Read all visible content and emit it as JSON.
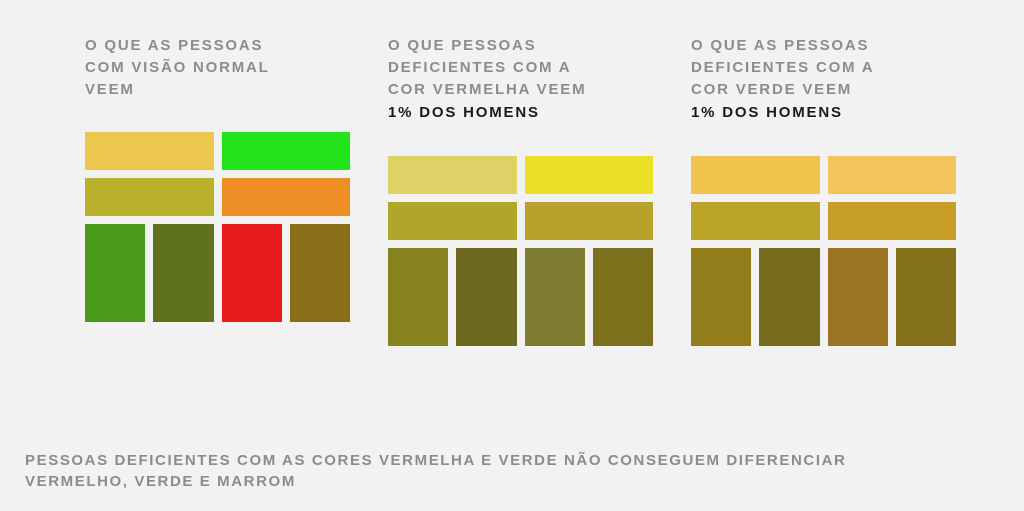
{
  "background_color": "#f2f2f2",
  "title_color": "#8c8c8c",
  "subtitle_color": "#1a1a1a",
  "title_fontsize": 15,
  "title_letter_spacing": 1.8,
  "swatch_gap": 8,
  "row_height_short": 38,
  "row_height_tall": 98,
  "panels": [
    {
      "title": "O QUE AS PESSOAS\nCOM VISÃO NORMAL\nVEEM",
      "subtitle": "",
      "rows": [
        {
          "tall": false,
          "colors": [
            "#ecc64f",
            "#22e319"
          ]
        },
        {
          "tall": false,
          "colors": [
            "#bab12b",
            "#ed8f24"
          ]
        },
        {
          "tall": true,
          "colors": [
            "#4a9a19",
            "#60711c",
            "#e61b19",
            "#886e18"
          ]
        }
      ]
    },
    {
      "title": "O QUE PESSOAS\nDEFICIENTES COM A\nCOR VERMELHA VEEM",
      "subtitle": "1% DOS HOMENS",
      "rows": [
        {
          "tall": false,
          "colors": [
            "#ded166",
            "#ecdf25"
          ]
        },
        {
          "tall": false,
          "colors": [
            "#b0a72a",
            "#b7a22d"
          ]
        },
        {
          "tall": true,
          "colors": [
            "#86821d",
            "#6d6a1f",
            "#7e7b32",
            "#7c711c"
          ]
        }
      ]
    },
    {
      "title": "O QUE AS PESSOAS\nDEFICIENTES COM A\nCOR VERDE VEEM",
      "subtitle": "1% DOS HOMENS",
      "rows": [
        {
          "tall": false,
          "colors": [
            "#efc34c",
            "#f1c55c"
          ]
        },
        {
          "tall": false,
          "colors": [
            "#bca329",
            "#c89e2b"
          ]
        },
        {
          "tall": true,
          "colors": [
            "#947d1b",
            "#766b1c",
            "#9c7323",
            "#846f1a"
          ]
        }
      ]
    }
  ],
  "footer_text": "PESSOAS DEFICIENTES COM AS CORES VERMELHA E VERDE NÃO CONSEGUEM DIFERENCIAR\nVERMELHO, VERDE E MARROM"
}
